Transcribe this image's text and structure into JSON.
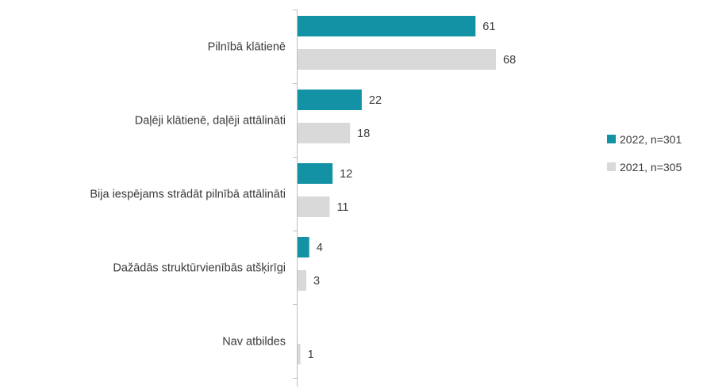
{
  "chart_data": {
    "type": "bar",
    "orientation": "horizontal",
    "categories": [
      "Pilnībā klātienē",
      "Daļēji klātienē, daļēji attālināti",
      "Bija iespējams strādāt pilnībā attālināti",
      "Dažādās struktūrvienībās atšķirīgi",
      "Nav atbildes"
    ],
    "series": [
      {
        "name": "2022, n=301",
        "color": "#1391a5",
        "values": [
          61,
          22,
          12,
          4,
          0
        ],
        "labels": [
          "61",
          "22",
          "12",
          "4",
          ""
        ]
      },
      {
        "name": "2021, n=305",
        "color": "#d9d9d9",
        "values": [
          68,
          18,
          11,
          3,
          1
        ],
        "labels": [
          "68",
          "18",
          "11",
          "3",
          "1"
        ]
      }
    ],
    "xlim": [
      0,
      70
    ],
    "grid": false,
    "legend_position": "right"
  }
}
